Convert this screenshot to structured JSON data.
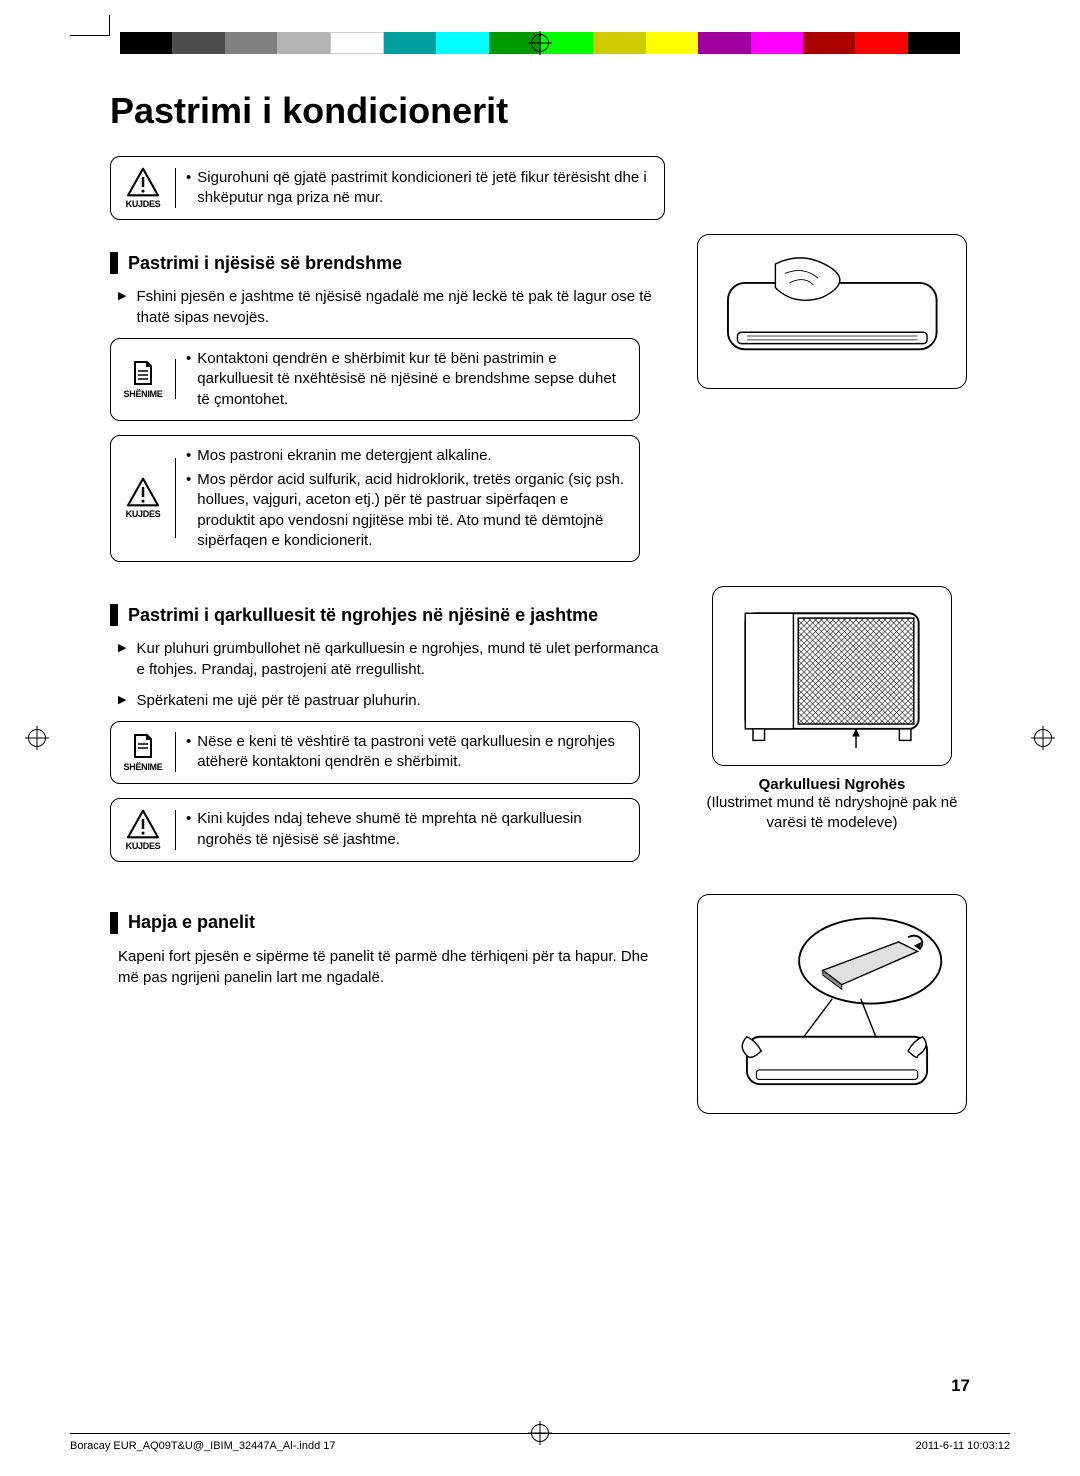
{
  "page_title": "Pastrimi i kondicionerit",
  "color_bar": [
    "#000000",
    "#4d4d4d",
    "#808080",
    "#b3b3b3",
    "#ffffff",
    "#00a0a0",
    "#00ffff",
    "#009900",
    "#00ff00",
    "#cccc00",
    "#ffff00",
    "#a000a0",
    "#ff00ff",
    "#aa0000",
    "#ff0000",
    "#000000"
  ],
  "top_caution": {
    "label": "KUJDES",
    "text": "Sigurohuni që gjatë pastrimit kondicioneri të jetë fikur tërësisht dhe i shkëputur nga priza në mur."
  },
  "section1": {
    "heading": "Pastrimi i njësisë së brendshme",
    "bullet": "Fshini pjesën e jashtme të njësisë ngadalë me një leckë të pak të lagur ose të thatë sipas nevojës.",
    "note": {
      "label": "SHËNIME",
      "text": "Kontaktoni qendrën e shërbimit kur të bëni pastrimin e qarkulluesit të nxëhtësisë në njësinë e brendshme sepse duhet të çmontohet."
    },
    "caution": {
      "label": "KUJDES",
      "b1": "Mos pastroni ekranin me detergjent alkaline.",
      "b2": "Mos përdor acid sulfurik, acid hidroklorik, tretës organic (siç psh. hollues, vajguri, aceton etj.) për të pastruar sipërfaqen e produktit apo vendosni ngjitëse mbi të. Ato mund të dëmtojnë sipërfaqen e kondicionerit."
    }
  },
  "section2": {
    "heading": "Pastrimi i qarkulluesit të ngrohjes në njësinë e jashtme",
    "bullet1": "Kur pluhuri grumbullohet në qarkulluesin e ngrohjes, mund të ulet performanca e ftohjes. Prandaj, pastrojeni atë rregullisht.",
    "bullet2": "Spërkateni me ujë për të pastruar pluhurin.",
    "note": {
      "label": "SHËNIME",
      "text": "Nëse e keni të vështirë ta pastroni vetë qarkulluesin e ngrohjes atëherë kontaktoni qendrën e shërbimit."
    },
    "caution": {
      "label": "KUJDES",
      "text": "Kini kujdes ndaj teheve shumë të mprehta në qarkulluesin ngrohës të njësisë së jashtme."
    },
    "caption_bold": "Qarkulluesi Ngrohës",
    "caption": "(Ilustrimet mund të ndryshojnë pak në varësi të modeleve)"
  },
  "section3": {
    "heading": "Hapja e panelit",
    "body": "Kapeni fort pjesën e sipërme të panelit të parmë dhe tërhiqeni për ta hapur. Dhe më pas ngrijeni panelin lart me ngadalë."
  },
  "page_number": "17",
  "footer_left": "Boracay EUR_AQ09T&U@_IBIM_32447A_Al-.indd   17",
  "footer_right": "2011-6-11   10:03:12"
}
